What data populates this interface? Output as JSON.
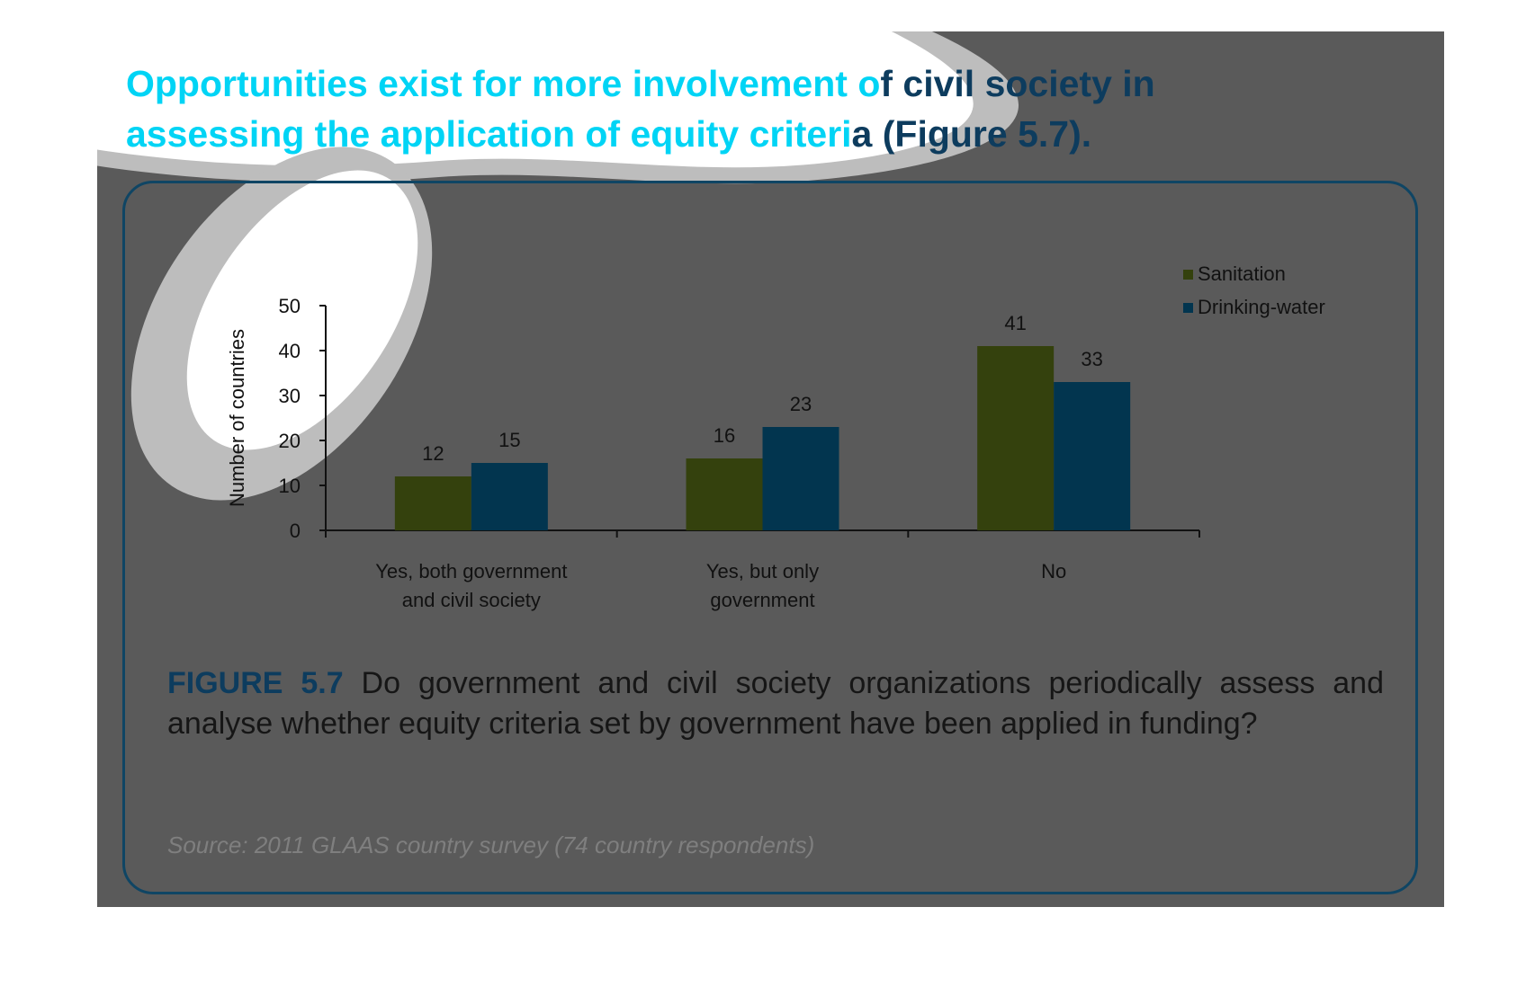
{
  "headline": {
    "part1": "Opportunities exist for more involvement o",
    "part2": "f civil society in",
    "part3": "assessing the application of equity criteri",
    "part4": "a (Figure 5.7)."
  },
  "caption": {
    "label": "FIGURE 5.7",
    "text": " Do government and civil society organizations periodically assess and analyse whether equity criteria set by government have been applied in funding?"
  },
  "source": "Source: 2011 GLAAS country survey (74 country respondents)",
  "colors": {
    "sanitation": "#34410d",
    "drinking_water": "#02354f",
    "headline_accent": "#00d4f5",
    "headline_dark": "#0d3c5e",
    "slide_background": "#5a5a5a",
    "panel_border": "#0f4564"
  },
  "chart_data": {
    "type": "bar",
    "title": "",
    "xlabel": "",
    "ylabel": "Number of countries",
    "ylim": [
      0,
      50
    ],
    "yticks": [
      0,
      10,
      20,
      30,
      40,
      50
    ],
    "categories": [
      [
        "Yes, both government",
        "and civil society"
      ],
      [
        "Yes, but only",
        "government"
      ],
      [
        "No"
      ]
    ],
    "series": [
      {
        "name": "Sanitation",
        "values": [
          12,
          16,
          41
        ]
      },
      {
        "name": "Drinking-water",
        "values": [
          15,
          23,
          33
        ]
      }
    ],
    "legend": "top-right",
    "grid": false
  }
}
